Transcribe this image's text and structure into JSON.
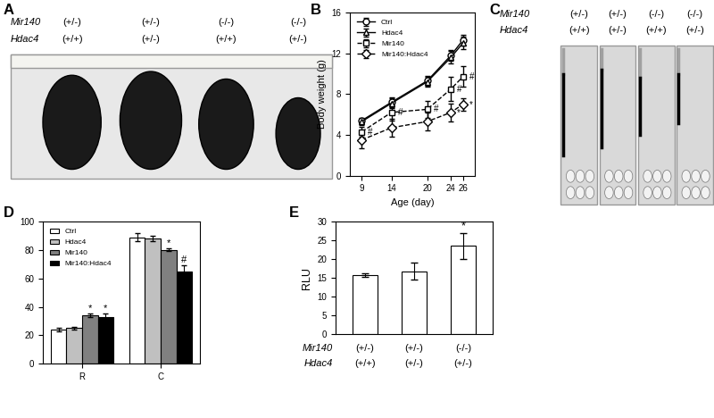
{
  "images": [
    {
      "panel": "A",
      "genotype_rows": [
        {
          "name": "Mir140",
          "values": [
            "(+/-)",
            "(+/-)",
            "(-/-)",
            "(-/-)"
          ]
        },
        {
          "name": "Hdac4",
          "values": [
            "(+/+)",
            "(+/-)",
            "(+/+)",
            "(+/-)"
          ]
        }
      ]
    },
    {
      "panel": "C",
      "genotype_rows": [
        {
          "name": "Mir140",
          "values": [
            "(+/-)",
            "(+/-)",
            "(-/-)",
            "(-/-)"
          ]
        },
        {
          "name": "Hdac4",
          "values": [
            "(+/+)",
            "(+/-)",
            "(+/+)",
            "(+/-)"
          ]
        }
      ]
    }
  ],
  "chart_data": [
    {
      "panel": "B",
      "type": "line",
      "x": [
        9,
        14,
        20,
        24,
        26
      ],
      "xlim": [
        7,
        28
      ],
      "xticks": [
        9,
        14,
        20,
        24,
        26
      ],
      "ylim": [
        0,
        16
      ],
      "yticks": [
        0,
        4,
        8,
        12,
        16
      ],
      "xlabel": "Age (day)",
      "ylabel": "Body weight (g)",
      "legend": "upper left",
      "series": [
        {
          "name": "Ctrl",
          "color": "#000000",
          "marker": "circle",
          "line_style": "solid",
          "values": [
            5.4,
            7.2,
            9.3,
            11.8,
            13.3
          ],
          "errors": [
            0.3,
            0.5,
            0.5,
            0.5,
            0.5
          ],
          "significance": [
            null,
            null,
            null,
            null,
            null
          ]
        },
        {
          "name": "Hdac4",
          "color": "#000000",
          "marker": "triangle",
          "line_style": "solid",
          "values": [
            5.3,
            7.1,
            9.2,
            11.6,
            13.0
          ],
          "errors": [
            0.3,
            0.5,
            0.5,
            0.6,
            0.6
          ],
          "significance": [
            null,
            null,
            null,
            null,
            null
          ]
        },
        {
          "name": "Mir140",
          "color": "#000000",
          "marker": "square",
          "line_style": "dashed",
          "values": [
            4.3,
            6.2,
            6.5,
            8.5,
            9.7
          ],
          "errors": [
            0.5,
            0.8,
            0.8,
            1.2,
            1.0
          ],
          "significance": [
            "#",
            "#",
            "#",
            "#",
            "#"
          ]
        },
        {
          "name": "Mir140:Hdac4",
          "color": "#000000",
          "marker": "diamond",
          "line_style": "dashed",
          "values": [
            3.5,
            4.7,
            5.3,
            6.2,
            7.0
          ],
          "errors": [
            0.8,
            0.9,
            0.9,
            0.9,
            0.6
          ],
          "significance": [
            null,
            null,
            null,
            "*",
            "*"
          ]
        }
      ]
    },
    {
      "panel": "D",
      "type": "bar",
      "categories": [
        "R",
        "C"
      ],
      "ylim": [
        0,
        100
      ],
      "yticks": [
        0,
        20,
        40,
        60,
        80,
        100
      ],
      "legend": "upper left",
      "series": [
        {
          "name": "Ctrl",
          "color": "#ffffff",
          "values": [
            24,
            89
          ],
          "errors": [
            1,
            3
          ],
          "significance": [
            null,
            null
          ]
        },
        {
          "name": "Hdac4",
          "color": "#c0c0c0",
          "values": [
            25,
            88
          ],
          "errors": [
            1,
            2
          ],
          "significance": [
            null,
            null
          ]
        },
        {
          "name": "Mir140",
          "color": "#808080",
          "values": [
            34,
            80
          ],
          "errors": [
            1,
            1
          ],
          "significance": [
            "*",
            "*"
          ]
        },
        {
          "name": "Mir140:Hdac4",
          "color": "#000000",
          "values": [
            33,
            65
          ],
          "errors": [
            2,
            4
          ],
          "significance": [
            "*",
            "#"
          ]
        }
      ]
    },
    {
      "panel": "E",
      "type": "bar",
      "categories": [
        null,
        null,
        null
      ],
      "ylim": [
        0,
        30
      ],
      "yticks": [
        0,
        5,
        10,
        15,
        20,
        25,
        30
      ],
      "ylabel": "RLU",
      "color": "#ffffff",
      "values": [
        15.8,
        16.8,
        23.5
      ],
      "errors": [
        0.5,
        2.2,
        3.5
      ],
      "significance": [
        null,
        null,
        "*"
      ],
      "genotype_rows": [
        {
          "name": "Mir140",
          "values": [
            "(+/-)",
            "(+/-)",
            "(-/-)"
          ]
        },
        {
          "name": "Hdac4",
          "values": [
            "(+/+)",
            "(+/-)",
            "(+/-)"
          ]
        }
      ]
    }
  ]
}
